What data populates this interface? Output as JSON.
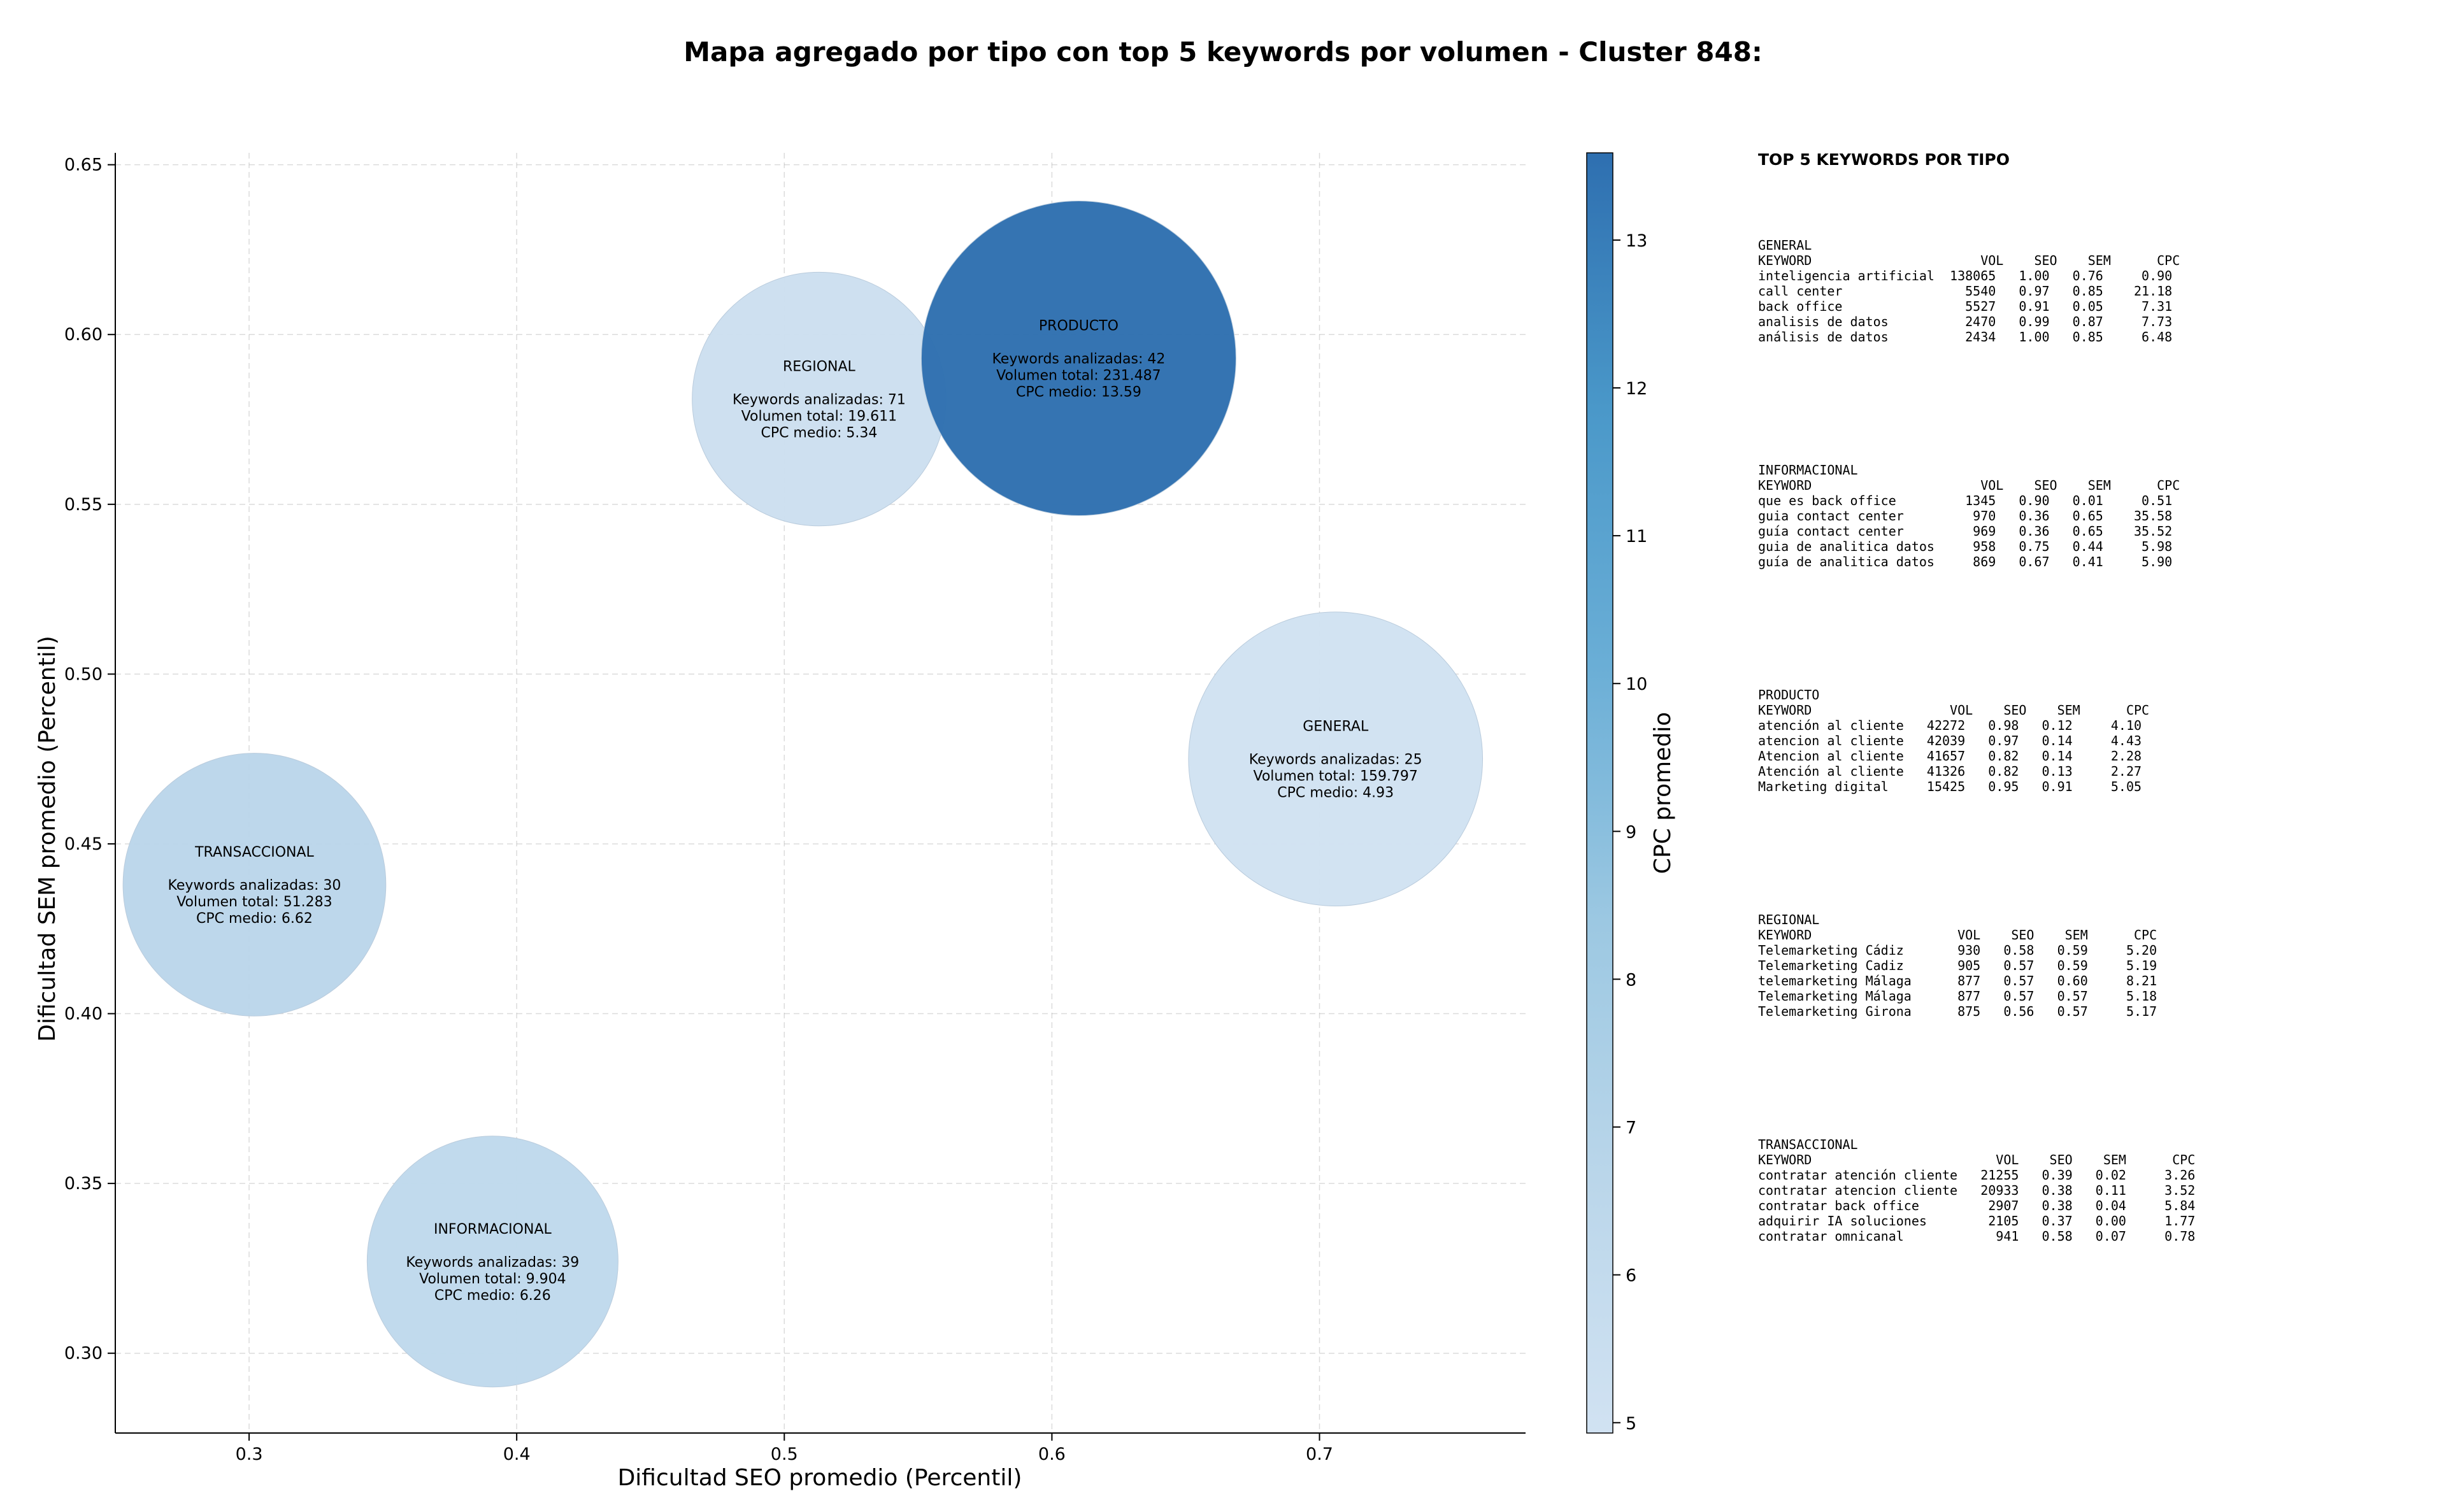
{
  "chart_data": {
    "type": "scatter",
    "title": "Mapa agregado por tipo con top 5 keywords por volumen - Cluster 848:",
    "xlabel": "Dificultad SEO promedio (Percentil)",
    "ylabel": "Dificultad SEM promedio (Percentil)",
    "xlim": [
      0.25,
      0.777
    ],
    "ylim": [
      0.2765,
      0.6535
    ],
    "xticks": [
      0.3,
      0.4,
      0.5,
      0.6,
      0.7
    ],
    "xtick_labels": [
      "0.3",
      "0.4",
      "0.5",
      "0.6",
      "0.7"
    ],
    "yticks": [
      0.3,
      0.35,
      0.4,
      0.45,
      0.5,
      0.55,
      0.6,
      0.65
    ],
    "ytick_labels": [
      "0.30",
      "0.35",
      "0.40",
      "0.45",
      "0.50",
      "0.55",
      "0.60",
      "0.65"
    ],
    "grid": true,
    "colorbar": {
      "label": "CPC promedio",
      "range": [
        4.93,
        13.59
      ],
      "ticks": [
        5,
        6,
        7,
        8,
        9,
        10,
        11,
        12,
        13
      ],
      "tick_labels": [
        "5",
        "6",
        "7",
        "8",
        "9",
        "10",
        "11",
        "12",
        "13"
      ],
      "colormap": [
        "#d1e2f2",
        "#bad6ea",
        "#9cc8e2",
        "#6aaed6",
        "#4a98c9",
        "#2e6fb0"
      ]
    },
    "points": [
      {
        "name": "REGIONAL",
        "x": 0.513,
        "y": 0.581,
        "keywords": 71,
        "volume": 19611,
        "cpc": 5.34,
        "lines": [
          "REGIONAL",
          "",
          "Keywords analizadas: 71",
          "Volumen total: 19.611",
          "CPC medio: 5.34"
        ]
      },
      {
        "name": "PRODUCTO",
        "x": 0.61,
        "y": 0.593,
        "keywords": 42,
        "volume": 231487,
        "cpc": 13.59,
        "lines": [
          "PRODUCTO",
          "",
          "Keywords analizadas: 42",
          "Volumen total: 231.487",
          "CPC medio: 13.59"
        ]
      },
      {
        "name": "GENERAL",
        "x": 0.706,
        "y": 0.475,
        "keywords": 25,
        "volume": 159797,
        "cpc": 4.93,
        "lines": [
          "GENERAL",
          "",
          "Keywords analizadas: 25",
          "Volumen total: 159.797",
          "CPC medio: 4.93"
        ]
      },
      {
        "name": "TRANSACCIONAL",
        "x": 0.302,
        "y": 0.438,
        "keywords": 30,
        "volume": 51283,
        "cpc": 6.62,
        "lines": [
          "TRANSACCIONAL",
          "",
          "Keywords analizadas: 30",
          "Volumen total: 51.283",
          "CPC medio: 6.62"
        ]
      },
      {
        "name": "INFORMACIONAL",
        "x": 0.391,
        "y": 0.327,
        "keywords": 39,
        "volume": 9904,
        "cpc": 6.26,
        "lines": [
          "INFORMACIONAL",
          "",
          "Keywords analizadas: 39",
          "Volumen total: 9.904",
          "CPC medio: 6.26"
        ]
      }
    ]
  },
  "keywords_panel": {
    "title": "TOP 5 KEYWORDS POR TIPO",
    "blocks": [
      {
        "type": "GENERAL",
        "lines": [
          "GENERAL",
          "KEYWORD                      VOL    SEO    SEM      CPC",
          "inteligencia artificial  138065   1.00   0.76     0.90",
          "call center                5540   0.97   0.85    21.18",
          "back office                5527   0.91   0.05     7.31",
          "analisis de datos          2470   0.99   0.87     7.73",
          "análisis de datos          2434   1.00   0.85     6.48"
        ]
      },
      {
        "type": "INFORMACIONAL",
        "lines": [
          "INFORMACIONAL",
          "KEYWORD                      VOL    SEO    SEM      CPC",
          "que es back office         1345   0.90   0.01     0.51",
          "guia contact center         970   0.36   0.65    35.58",
          "guía contact center         969   0.36   0.65    35.52",
          "guia de analitica datos     958   0.75   0.44     5.98",
          "guía de analitica datos     869   0.67   0.41     5.90"
        ]
      },
      {
        "type": "PRODUCTO",
        "lines": [
          "PRODUCTO",
          "KEYWORD                  VOL    SEO    SEM      CPC",
          "atención al cliente   42272   0.98   0.12     4.10",
          "atencion al cliente   42039   0.97   0.14     4.43",
          "Atencion al cliente   41657   0.82   0.14     2.28",
          "Atención al cliente   41326   0.82   0.13     2.27",
          "Marketing digital     15425   0.95   0.91     5.05"
        ]
      },
      {
        "type": "REGIONAL",
        "lines": [
          "REGIONAL",
          "KEYWORD                   VOL    SEO    SEM      CPC",
          "Telemarketing Cádiz       930   0.58   0.59     5.20",
          "Telemarketing Cadiz       905   0.57   0.59     5.19",
          "telemarketing Málaga      877   0.57   0.60     8.21",
          "Telemarketing Málaga      877   0.57   0.57     5.18",
          "Telemarketing Girona      875   0.56   0.57     5.17"
        ]
      },
      {
        "type": "TRANSACCIONAL",
        "lines": [
          "TRANSACCIONAL",
          "KEYWORD                        VOL    SEO    SEM      CPC",
          "contratar atención cliente   21255   0.39   0.02     3.26",
          "contratar atencion cliente   20933   0.38   0.11     3.52",
          "contratar back office         2907   0.38   0.04     5.84",
          "adquirir IA soluciones        2105   0.37   0.00     1.77",
          "contratar omnicanal            941   0.58   0.07     0.78"
        ]
      }
    ]
  }
}
